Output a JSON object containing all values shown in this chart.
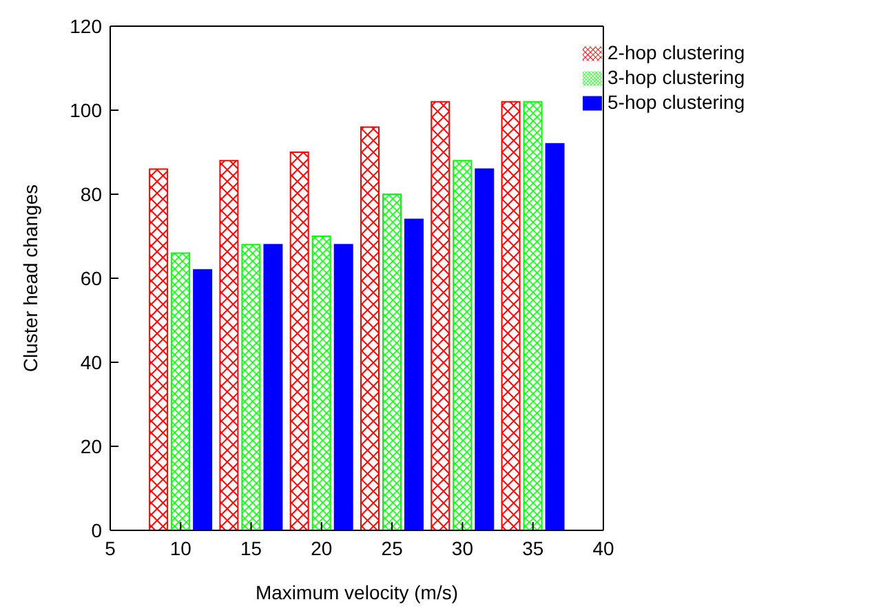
{
  "chart_data": {
    "type": "bar",
    "xlabel": "Maximum velocity (m/s)",
    "ylabel": "Cluster head changes",
    "x": [
      10,
      15,
      20,
      25,
      30,
      35
    ],
    "series": [
      {
        "name": "2-hop clustering",
        "color": "#ff0000",
        "values": [
          86,
          88,
          90,
          96,
          102,
          102
        ]
      },
      {
        "name": "3-hop clustering",
        "color": "#00ff00",
        "values": [
          66,
          68,
          70,
          80,
          88,
          102
        ]
      },
      {
        "name": "5-hop clustering",
        "color": "#0000ff",
        "values": [
          62,
          68,
          68,
          74,
          86,
          92
        ]
      }
    ],
    "xlim": [
      5,
      40
    ],
    "xticks": [
      5,
      10,
      15,
      20,
      25,
      30,
      35,
      40
    ],
    "ylim": [
      0,
      120
    ],
    "yticks": [
      0,
      20,
      40,
      60,
      80,
      100,
      120
    ],
    "legend": "top right"
  }
}
